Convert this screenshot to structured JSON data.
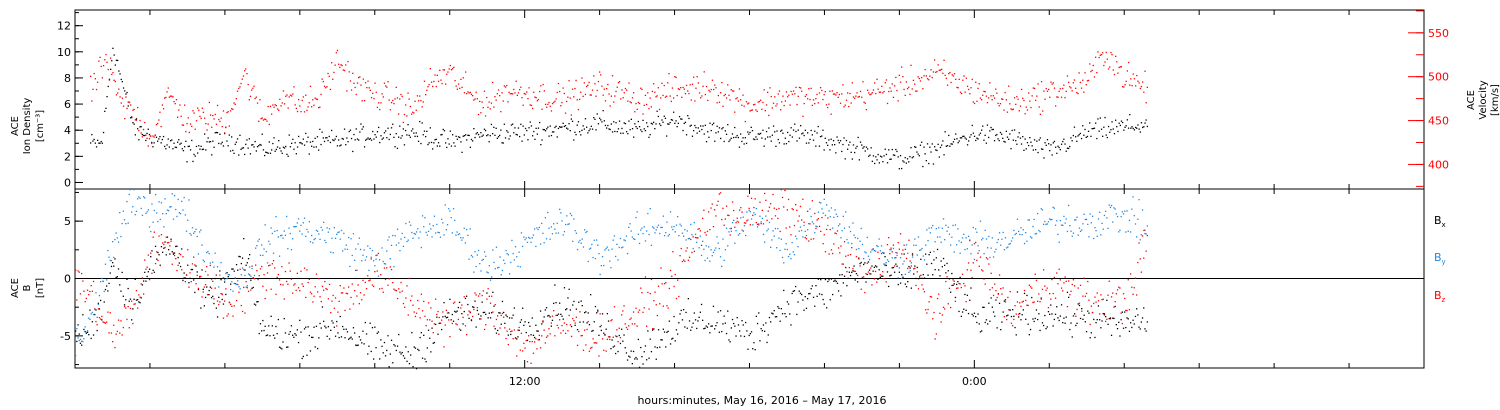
{
  "xlabel": "hours:minutes, May 16, 2016 – May 17, 2016",
  "chart_data": [
    {
      "type": "scatter",
      "panel": "top",
      "left_axis": {
        "label_lines": [
          "ACE",
          "Ion Density",
          "[cm⁻³]"
        ],
        "ylim": [
          -0.5,
          13.2
        ],
        "ticks": [
          0,
          2,
          4,
          6,
          8,
          10,
          12
        ],
        "color": "#000000"
      },
      "right_axis": {
        "label_lines": [
          "ACE",
          "Velocity",
          "[km/s]"
        ],
        "ylim": [
          372,
          576
        ],
        "ticks": [
          400,
          450,
          500,
          550
        ],
        "color": "#ff0000"
      },
      "xlim_hours": [
        0,
        36
      ],
      "series": [
        {
          "axis": "left",
          "color": "#000000",
          "start_hour": 0.4,
          "end_hour": 28.6,
          "x": [
            0.4,
            0.7,
            1.0,
            1.3,
            1.6,
            2.0,
            3.0,
            4.0,
            5.0,
            6.0,
            7.0,
            8.0,
            9.0,
            10.0,
            11.0,
            12.0,
            13.0,
            14.0,
            15.0,
            16.0,
            17.0,
            18.0,
            19.0,
            20.0,
            21.0,
            22.0,
            23.0,
            24.0,
            25.0,
            26.0,
            27.0,
            28.0,
            28.6
          ],
          "y": [
            3,
            3,
            10.5,
            7,
            4,
            3.6,
            2.4,
            3.4,
            2.6,
            3,
            3.2,
            3.8,
            3.9,
            3.1,
            3.8,
            3.9,
            4.2,
            4.6,
            4.0,
            4.9,
            3.9,
            3.5,
            3.8,
            3.3,
            2.5,
            1.8,
            2.6,
            3.8,
            3.4,
            2.4,
            3.9,
            4.3,
            4.5
          ],
          "jitter": 0.7
        },
        {
          "axis": "right",
          "color": "#ff0000",
          "start_hour": 0.4,
          "end_hour": 28.6,
          "x": [
            0.4,
            0.8,
            1.2,
            1.6,
            2.0,
            2.5,
            3.0,
            3.5,
            4.0,
            4.5,
            5.0,
            5.5,
            6.0,
            6.5,
            7.0,
            7.5,
            8.0,
            8.5,
            9.0,
            9.5,
            10.0,
            10.5,
            11.0,
            11.5,
            12.0,
            13.0,
            14.0,
            15.0,
            16.0,
            17.0,
            18.0,
            19.0,
            20.0,
            21.0,
            22.0,
            23.0,
            24.0,
            25.0,
            26.0,
            27.0,
            27.5,
            28.0,
            28.6
          ],
          "y": [
            480,
            520,
            470,
            458,
            430,
            480,
            448,
            455,
            450,
            505,
            450,
            480,
            468,
            475,
            520,
            490,
            480,
            475,
            462,
            495,
            505,
            480,
            470,
            485,
            482,
            475,
            490,
            475,
            485,
            490,
            468,
            478,
            475,
            480,
            490,
            505,
            485,
            470,
            482,
            495,
            530,
            500,
            487
          ],
          "jitter": 14
        }
      ]
    },
    {
      "type": "scatter",
      "panel": "bottom",
      "left_axis": {
        "label_lines": [
          "ACE",
          "B",
          "[nT]"
        ],
        "ylim": [
          -7.8,
          7.8
        ],
        "ticks": [
          -5,
          0,
          5
        ],
        "color": "#000000"
      },
      "xlim_hours": [
        0,
        36
      ],
      "zero_line": true,
      "legend": {
        "placement": "right",
        "entries": [
          {
            "name": "B",
            "sub": "x",
            "color": "#000000"
          },
          {
            "name": "B",
            "sub": "y",
            "color": "#1e88e5"
          },
          {
            "name": "B",
            "sub": "z",
            "color": "#ff0000"
          }
        ]
      },
      "series": [
        {
          "name": "Bx",
          "color": "#000000",
          "start_hour": 0,
          "end_hour": 28.6,
          "x": [
            0,
            0.5,
            1.0,
            1.5,
            2.0,
            2.5,
            3.0,
            3.5,
            4.0,
            4.5,
            5.0,
            6.0,
            7.0,
            8.0,
            9.0,
            10.0,
            11.0,
            12.0,
            13.0,
            14.0,
            15.0,
            16.0,
            17.0,
            18.0,
            19.0,
            20.0,
            21.0,
            22.0,
            23.0,
            24.0,
            25.0,
            26.0,
            27.0,
            28.0,
            28.6
          ],
          "y": [
            -5,
            -4,
            1.5,
            -2,
            1,
            3,
            1,
            -2,
            -1,
            2,
            -4.5,
            -5,
            -4,
            -6,
            -6.5,
            -3,
            -3,
            -4,
            -2,
            -4,
            -6.5,
            -4,
            -3.5,
            -5,
            -2,
            -1.2,
            1,
            0,
            1.5,
            -3.5,
            -3,
            -3,
            -3.5,
            -4,
            -3.5
          ],
          "jitter": 1.4
        },
        {
          "name": "By",
          "color": "#1e88e5",
          "start_hour": 0,
          "end_hour": 28.6,
          "x": [
            0,
            0.5,
            1.0,
            1.5,
            2.0,
            2.5,
            3.0,
            3.5,
            4.0,
            4.5,
            5.0,
            6.0,
            7.0,
            8.0,
            9.0,
            10.0,
            11.0,
            12.0,
            13.0,
            14.0,
            15.0,
            16.0,
            17.0,
            18.0,
            19.0,
            20.0,
            21.0,
            22.0,
            23.0,
            24.0,
            25.0,
            26.0,
            27.0,
            28.0,
            28.6
          ],
          "y": [
            -6,
            -3,
            3,
            6.5,
            6,
            6.5,
            5.5,
            2,
            0,
            0,
            3,
            4.5,
            3.5,
            1.5,
            4,
            5,
            1,
            3,
            5,
            2,
            4,
            5,
            2,
            5.5,
            2.5,
            6.5,
            3,
            1.5,
            4,
            3,
            3.5,
            5,
            5,
            5.5,
            4.5
          ],
          "jitter": 1.3
        },
        {
          "name": "Bz",
          "color": "#ff0000",
          "start_hour": 0,
          "end_hour": 28.6,
          "x": [
            0,
            0.5,
            1.0,
            1.5,
            2.0,
            2.5,
            3.0,
            3.5,
            4.0,
            4.5,
            5.0,
            6.0,
            7.0,
            8.0,
            9.0,
            10.0,
            11.0,
            12.0,
            13.0,
            14.0,
            15.0,
            16.0,
            17.0,
            18.0,
            19.0,
            20.0,
            21.0,
            22.0,
            23.0,
            24.0,
            25.0,
            26.0,
            27.0,
            28.0,
            28.6
          ],
          "y": [
            0,
            -2,
            -5,
            -3,
            2,
            3,
            0.5,
            0,
            -2,
            -1,
            0.5,
            0,
            -2,
            0.5,
            -2,
            -4,
            -2,
            -6,
            -4,
            -5,
            -3,
            0,
            6,
            5.5,
            6,
            4,
            0,
            3,
            -3.5,
            2,
            -3,
            0,
            -2,
            -2,
            3
          ],
          "jitter": 1.6
        }
      ]
    }
  ],
  "x_axis": {
    "tick_labels": [
      {
        "hour": 12,
        "label": "12:00"
      },
      {
        "hour": 24,
        "label": "0:00"
      }
    ],
    "minor_every_hours": 2
  }
}
